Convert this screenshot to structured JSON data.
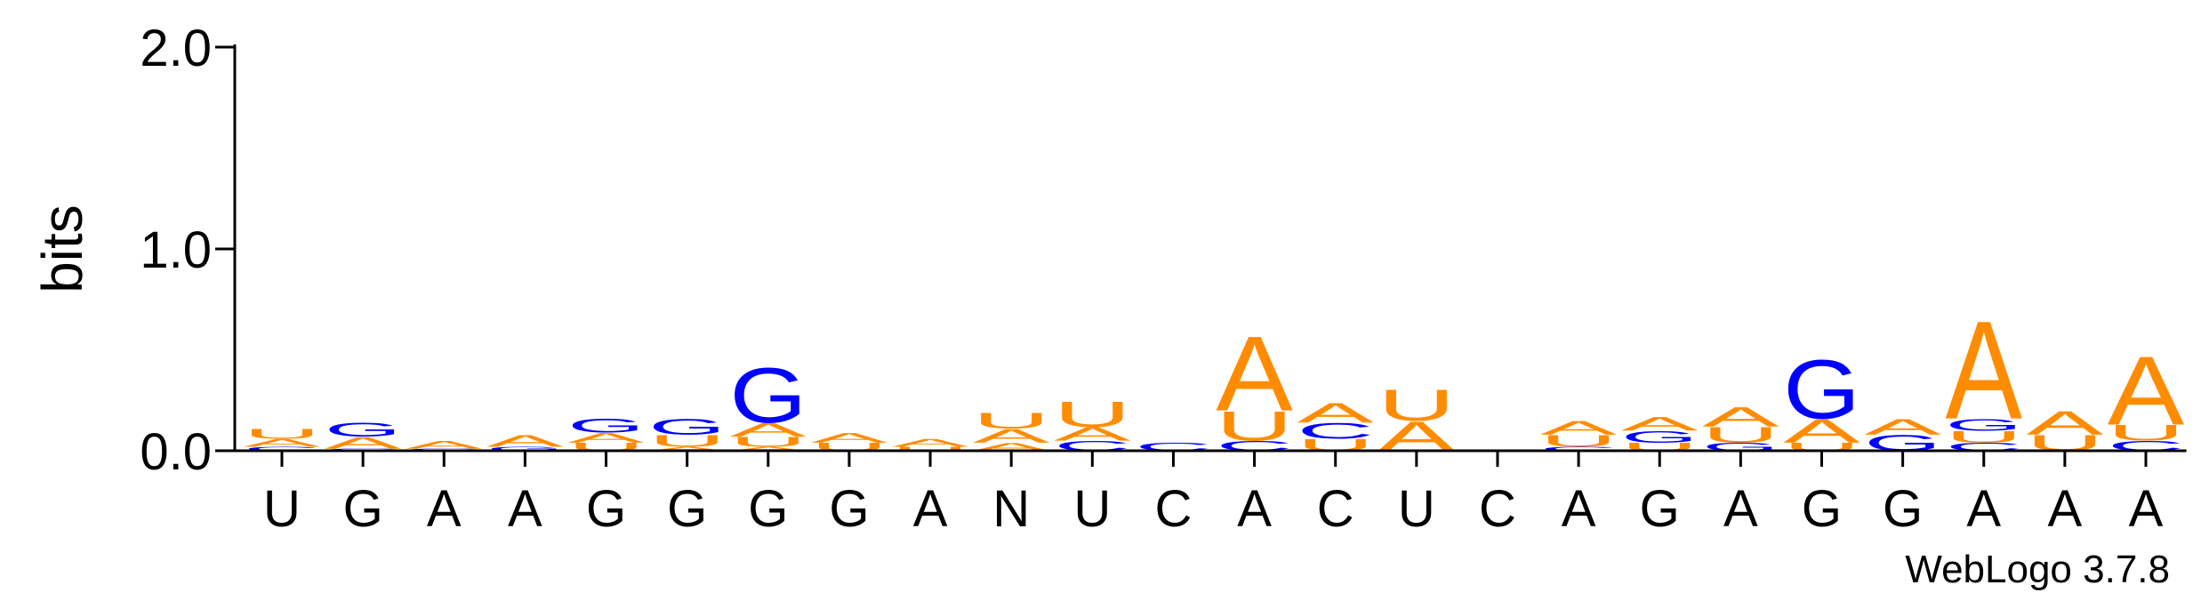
{
  "chart_data": {
    "type": "logo",
    "ylabel": "bits",
    "footer": "WebLogo 3.7.8",
    "ylim": [
      0,
      2
    ],
    "yticks": [
      {
        "value": 0,
        "label": "0.0"
      },
      {
        "value": 1,
        "label": "1.0"
      },
      {
        "value": 2,
        "label": "2.0"
      }
    ],
    "colors": {
      "A": "#ff8c00",
      "U": "#ff8c00",
      "G": "#0000ff",
      "C": "#0000ff"
    },
    "categories": [
      "U",
      "G",
      "A",
      "A",
      "G",
      "G",
      "G",
      "G",
      "A",
      "N",
      "U",
      "C",
      "A",
      "C",
      "U",
      "C",
      "A",
      "G",
      "A",
      "G",
      "G",
      "A",
      "A",
      "A"
    ],
    "stacks": [
      [
        {
          "letter": "C",
          "value": 0.02
        },
        {
          "letter": "A",
          "value": 0.04
        },
        {
          "letter": "U",
          "value": 0.05
        }
      ],
      [
        {
          "letter": "C",
          "value": 0.01
        },
        {
          "letter": "A",
          "value": 0.06
        },
        {
          "letter": "G",
          "value": 0.07
        }
      ],
      [
        {
          "letter": "C",
          "value": 0.01
        },
        {
          "letter": "A",
          "value": 0.04
        }
      ],
      [
        {
          "letter": "G",
          "value": 0.02
        },
        {
          "letter": "A",
          "value": 0.06
        }
      ],
      [
        {
          "letter": "U",
          "value": 0.04
        },
        {
          "letter": "A",
          "value": 0.05
        },
        {
          "letter": "G",
          "value": 0.07
        }
      ],
      [
        {
          "letter": "A",
          "value": 0.02
        },
        {
          "letter": "U",
          "value": 0.06
        },
        {
          "letter": "G",
          "value": 0.08
        }
      ],
      [
        {
          "letter": "A",
          "value": 0.02
        },
        {
          "letter": "U",
          "value": 0.05
        },
        {
          "letter": "A",
          "value": 0.07
        },
        {
          "letter": "G",
          "value": 0.28
        }
      ],
      [
        {
          "letter": "U",
          "value": 0.04
        },
        {
          "letter": "A",
          "value": 0.05
        }
      ],
      [
        {
          "letter": "U",
          "value": 0.02
        },
        {
          "letter": "A",
          "value": 0.04
        }
      ],
      [
        {
          "letter": "A",
          "value": 0.04
        },
        {
          "letter": "A",
          "value": 0.07
        },
        {
          "letter": "U",
          "value": 0.08
        }
      ],
      [
        {
          "letter": "C",
          "value": 0.05
        },
        {
          "letter": "A",
          "value": 0.07
        },
        {
          "letter": "U",
          "value": 0.13
        }
      ],
      [
        {
          "letter": "C",
          "value": 0.04
        }
      ],
      [
        {
          "letter": "C",
          "value": 0.05
        },
        {
          "letter": "U",
          "value": 0.15
        },
        {
          "letter": "A",
          "value": 0.38
        }
      ],
      [
        {
          "letter": "U",
          "value": 0.06
        },
        {
          "letter": "C",
          "value": 0.08
        },
        {
          "letter": "A",
          "value": 0.1
        }
      ],
      [
        {
          "letter": "A",
          "value": 0.15
        },
        {
          "letter": "U",
          "value": 0.16
        }
      ],
      [],
      [
        {
          "letter": "C",
          "value": 0.02
        },
        {
          "letter": "U",
          "value": 0.06
        },
        {
          "letter": "A",
          "value": 0.07
        }
      ],
      [
        {
          "letter": "U",
          "value": 0.04
        },
        {
          "letter": "G",
          "value": 0.06
        },
        {
          "letter": "A",
          "value": 0.07
        }
      ],
      [
        {
          "letter": "G",
          "value": 0.04
        },
        {
          "letter": "U",
          "value": 0.08
        },
        {
          "letter": "A",
          "value": 0.1
        }
      ],
      [
        {
          "letter": "U",
          "value": 0.04
        },
        {
          "letter": "A",
          "value": 0.12
        },
        {
          "letter": "G",
          "value": 0.3
        }
      ],
      [
        {
          "letter": "G",
          "value": 0.08
        },
        {
          "letter": "A",
          "value": 0.08
        }
      ],
      [
        {
          "letter": "C",
          "value": 0.04
        },
        {
          "letter": "U",
          "value": 0.06
        },
        {
          "letter": "G",
          "value": 0.06
        },
        {
          "letter": "A",
          "value": 0.5
        }
      ],
      [
        {
          "letter": "U",
          "value": 0.08
        },
        {
          "letter": "A",
          "value": 0.12
        }
      ],
      [
        {
          "letter": "C",
          "value": 0.05
        },
        {
          "letter": "U",
          "value": 0.08
        },
        {
          "letter": "A",
          "value": 0.35
        }
      ]
    ]
  }
}
